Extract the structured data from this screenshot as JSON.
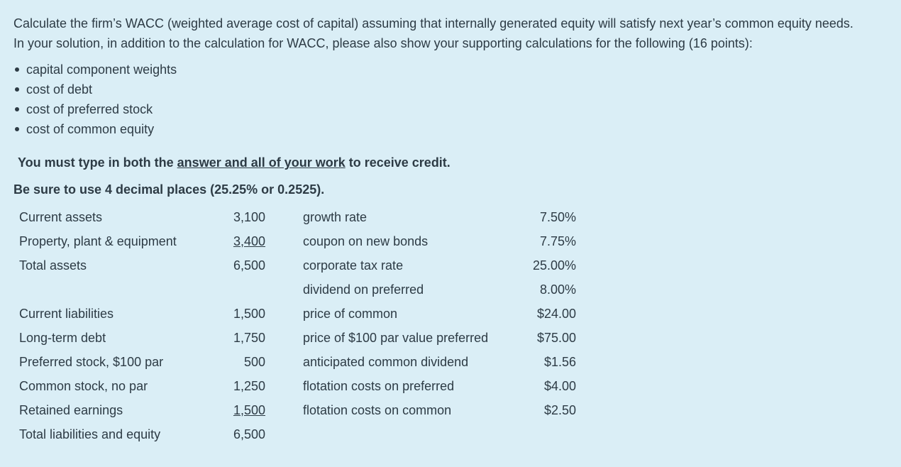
{
  "intro": {
    "line1": "Calculate the firm’s WACC (weighted average cost of capital) assuming that internally generated equity will satisfy next year’s common equity needs.",
    "line2": "In your solution, in addition to the calculation for WACC, please also show your supporting calculations for the following (16 points):"
  },
  "bullets": [
    "capital component weights",
    "cost of debt",
    "cost of preferred stock",
    "cost of common equity"
  ],
  "instructions": {
    "must_type_prefix": "You must type in both the ",
    "must_type_underlined": "answer and all of your work",
    "must_type_suffix": " to receive credit.",
    "decimals": "Be sure to use 4 decimal places (25.25% or 0.2525)."
  },
  "balance_sheet": [
    {
      "label": "Current assets",
      "value": "3,100"
    },
    {
      "label": "Property, plant & equipment",
      "value": "3,400"
    },
    {
      "label": "Total assets",
      "value": "6,500"
    },
    {
      "label": "Current liabilities",
      "value": "1,500"
    },
    {
      "label": "Long-term debt",
      "value": "1,750"
    },
    {
      "label": "Preferred stock, $100 par",
      "value": "500"
    },
    {
      "label": "Common stock, no par",
      "value": "1,250"
    },
    {
      "label": "Retained earnings",
      "value": "1,500"
    },
    {
      "label": "Total liabilities and equity",
      "value": "6,500"
    }
  ],
  "rates": [
    {
      "label": "growth rate",
      "value": "7.50%"
    },
    {
      "label": "coupon on new bonds",
      "value": "7.75%"
    },
    {
      "label": "corporate tax rate",
      "value": "25.00%"
    },
    {
      "label": "dividend on preferred",
      "value": "8.00%"
    },
    {
      "label": "price of common",
      "value": "$24.00"
    },
    {
      "label": "price of $100 par value preferred",
      "value": "$75.00"
    },
    {
      "label": "anticipated common dividend",
      "value": "$1.56"
    },
    {
      "label": "flotation costs on preferred",
      "value": "$4.00"
    },
    {
      "label": "flotation costs on common",
      "value": "$2.50"
    }
  ]
}
